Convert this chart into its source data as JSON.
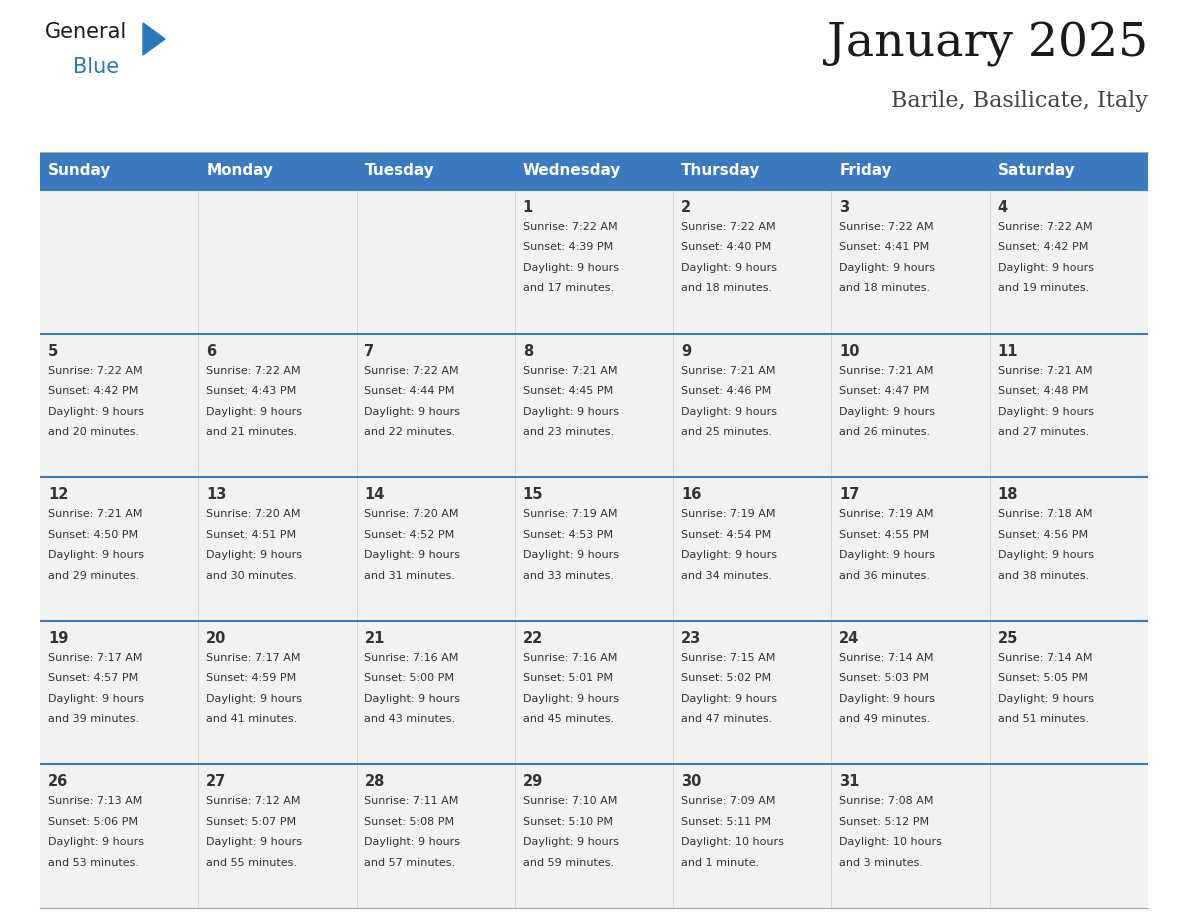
{
  "title": "January 2025",
  "subtitle": "Barile, Basilicate, Italy",
  "header_bg": "#3a7abf",
  "header_text": "#ffffff",
  "weekdays": [
    "Sunday",
    "Monday",
    "Tuesday",
    "Wednesday",
    "Thursday",
    "Friday",
    "Saturday"
  ],
  "row_bg": "#f2f2f2",
  "divider_color": "#3a7abf",
  "day_number_color": "#333333",
  "info_color": "#333333",
  "logo_general_color": "#1a1a1a",
  "logo_blue_color": "#2878be",
  "calendar": [
    [
      null,
      null,
      null,
      {
        "day": "1",
        "sunrise": "7:22 AM",
        "sunset": "4:39 PM",
        "daylight_hrs": "9 hours",
        "daylight_min": "and 17 minutes."
      },
      {
        "day": "2",
        "sunrise": "7:22 AM",
        "sunset": "4:40 PM",
        "daylight_hrs": "9 hours",
        "daylight_min": "and 18 minutes."
      },
      {
        "day": "3",
        "sunrise": "7:22 AM",
        "sunset": "4:41 PM",
        "daylight_hrs": "9 hours",
        "daylight_min": "and 18 minutes."
      },
      {
        "day": "4",
        "sunrise": "7:22 AM",
        "sunset": "4:42 PM",
        "daylight_hrs": "9 hours",
        "daylight_min": "and 19 minutes."
      }
    ],
    [
      {
        "day": "5",
        "sunrise": "7:22 AM",
        "sunset": "4:42 PM",
        "daylight_hrs": "9 hours",
        "daylight_min": "and 20 minutes."
      },
      {
        "day": "6",
        "sunrise": "7:22 AM",
        "sunset": "4:43 PM",
        "daylight_hrs": "9 hours",
        "daylight_min": "and 21 minutes."
      },
      {
        "day": "7",
        "sunrise": "7:22 AM",
        "sunset": "4:44 PM",
        "daylight_hrs": "9 hours",
        "daylight_min": "and 22 minutes."
      },
      {
        "day": "8",
        "sunrise": "7:21 AM",
        "sunset": "4:45 PM",
        "daylight_hrs": "9 hours",
        "daylight_min": "and 23 minutes."
      },
      {
        "day": "9",
        "sunrise": "7:21 AM",
        "sunset": "4:46 PM",
        "daylight_hrs": "9 hours",
        "daylight_min": "and 25 minutes."
      },
      {
        "day": "10",
        "sunrise": "7:21 AM",
        "sunset": "4:47 PM",
        "daylight_hrs": "9 hours",
        "daylight_min": "and 26 minutes."
      },
      {
        "day": "11",
        "sunrise": "7:21 AM",
        "sunset": "4:48 PM",
        "daylight_hrs": "9 hours",
        "daylight_min": "and 27 minutes."
      }
    ],
    [
      {
        "day": "12",
        "sunrise": "7:21 AM",
        "sunset": "4:50 PM",
        "daylight_hrs": "9 hours",
        "daylight_min": "and 29 minutes."
      },
      {
        "day": "13",
        "sunrise": "7:20 AM",
        "sunset": "4:51 PM",
        "daylight_hrs": "9 hours",
        "daylight_min": "and 30 minutes."
      },
      {
        "day": "14",
        "sunrise": "7:20 AM",
        "sunset": "4:52 PM",
        "daylight_hrs": "9 hours",
        "daylight_min": "and 31 minutes."
      },
      {
        "day": "15",
        "sunrise": "7:19 AM",
        "sunset": "4:53 PM",
        "daylight_hrs": "9 hours",
        "daylight_min": "and 33 minutes."
      },
      {
        "day": "16",
        "sunrise": "7:19 AM",
        "sunset": "4:54 PM",
        "daylight_hrs": "9 hours",
        "daylight_min": "and 34 minutes."
      },
      {
        "day": "17",
        "sunrise": "7:19 AM",
        "sunset": "4:55 PM",
        "daylight_hrs": "9 hours",
        "daylight_min": "and 36 minutes."
      },
      {
        "day": "18",
        "sunrise": "7:18 AM",
        "sunset": "4:56 PM",
        "daylight_hrs": "9 hours",
        "daylight_min": "and 38 minutes."
      }
    ],
    [
      {
        "day": "19",
        "sunrise": "7:17 AM",
        "sunset": "4:57 PM",
        "daylight_hrs": "9 hours",
        "daylight_min": "and 39 minutes."
      },
      {
        "day": "20",
        "sunrise": "7:17 AM",
        "sunset": "4:59 PM",
        "daylight_hrs": "9 hours",
        "daylight_min": "and 41 minutes."
      },
      {
        "day": "21",
        "sunrise": "7:16 AM",
        "sunset": "5:00 PM",
        "daylight_hrs": "9 hours",
        "daylight_min": "and 43 minutes."
      },
      {
        "day": "22",
        "sunrise": "7:16 AM",
        "sunset": "5:01 PM",
        "daylight_hrs": "9 hours",
        "daylight_min": "and 45 minutes."
      },
      {
        "day": "23",
        "sunrise": "7:15 AM",
        "sunset": "5:02 PM",
        "daylight_hrs": "9 hours",
        "daylight_min": "and 47 minutes."
      },
      {
        "day": "24",
        "sunrise": "7:14 AM",
        "sunset": "5:03 PM",
        "daylight_hrs": "9 hours",
        "daylight_min": "and 49 minutes."
      },
      {
        "day": "25",
        "sunrise": "7:14 AM",
        "sunset": "5:05 PM",
        "daylight_hrs": "9 hours",
        "daylight_min": "and 51 minutes."
      }
    ],
    [
      {
        "day": "26",
        "sunrise": "7:13 AM",
        "sunset": "5:06 PM",
        "daylight_hrs": "9 hours",
        "daylight_min": "and 53 minutes."
      },
      {
        "day": "27",
        "sunrise": "7:12 AM",
        "sunset": "5:07 PM",
        "daylight_hrs": "9 hours",
        "daylight_min": "and 55 minutes."
      },
      {
        "day": "28",
        "sunrise": "7:11 AM",
        "sunset": "5:08 PM",
        "daylight_hrs": "9 hours",
        "daylight_min": "and 57 minutes."
      },
      {
        "day": "29",
        "sunrise": "7:10 AM",
        "sunset": "5:10 PM",
        "daylight_hrs": "9 hours",
        "daylight_min": "and 59 minutes."
      },
      {
        "day": "30",
        "sunrise": "7:09 AM",
        "sunset": "5:11 PM",
        "daylight_hrs": "10 hours",
        "daylight_min": "and 1 minute."
      },
      {
        "day": "31",
        "sunrise": "7:08 AM",
        "sunset": "5:12 PM",
        "daylight_hrs": "10 hours",
        "daylight_min": "and 3 minutes."
      },
      null
    ]
  ]
}
